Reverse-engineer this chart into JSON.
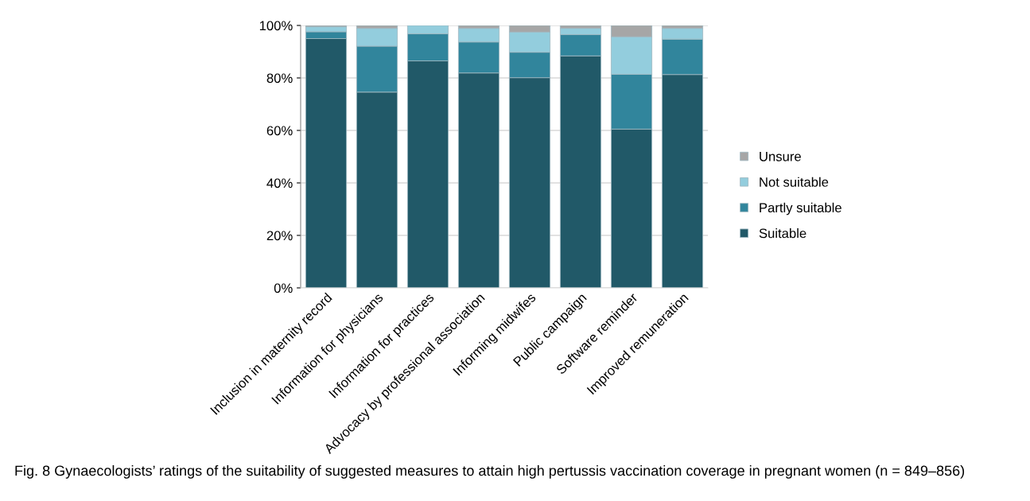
{
  "chart_data": {
    "type": "bar",
    "stacked": true,
    "categories": [
      "Inclusion in maternity record",
      "Information for physicians",
      "Information for practices",
      "Advocacy by professional association",
      "Informing midwifes",
      "Public campaign",
      "Software reminder",
      "Improved remuneration"
    ],
    "series": [
      {
        "name": "Suitable",
        "color": "#215968",
        "values": [
          95,
          74.6,
          86.5,
          81.9,
          80.1,
          88.4,
          60.5,
          81.3
        ]
      },
      {
        "name": "Partly suitable",
        "color": "#31859c",
        "values": [
          2.6,
          17.5,
          10.3,
          11.8,
          9.7,
          8.1,
          20.9,
          13.5
        ]
      },
      {
        "name": "Not suitable",
        "color": "#93cddd",
        "values": [
          1.9,
          6.8,
          3.2,
          5.2,
          7.7,
          2.4,
          14.3,
          4.1
        ]
      },
      {
        "name": "Unsure",
        "color": "#a6a6a6",
        "values": [
          0.5,
          1.1,
          0,
          1.1,
          2.5,
          1.1,
          4.3,
          1.1
        ]
      }
    ],
    "ylim": [
      0,
      100
    ],
    "yticks": [
      {
        "value": 0,
        "label": "0%"
      },
      {
        "value": 20,
        "label": "20%"
      },
      {
        "value": 40,
        "label": "40%"
      },
      {
        "value": 60,
        "label": "60%"
      },
      {
        "value": 80,
        "label": "80%"
      },
      {
        "value": 100,
        "label": "100%"
      }
    ],
    "grid": "y",
    "legend": "right",
    "annotations": [
      "Fig. 8 Gynaecologists’ ratings of the suitability of suggested measures to attain high pertussis vaccination coverage in pregnant women (n = 849–856)"
    ]
  }
}
